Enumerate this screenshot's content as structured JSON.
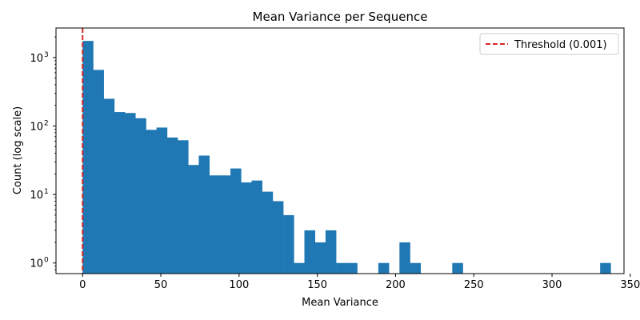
{
  "chart_data": {
    "type": "bar",
    "title": "Mean Variance per Sequence",
    "xlabel": "Mean Variance",
    "ylabel": "Count (log scale)",
    "y_scale": "log",
    "xlim": [
      -17,
      346
    ],
    "ylim": [
      0.7,
      2700
    ],
    "x_ticks": [
      0,
      50,
      100,
      150,
      200,
      250,
      300,
      350
    ],
    "y_ticks": [
      {
        "value": 1,
        "base": "10",
        "exp": "0"
      },
      {
        "value": 10,
        "base": "10",
        "exp": "1"
      },
      {
        "value": 100,
        "base": "10",
        "exp": "2"
      },
      {
        "value": 1000,
        "base": "10",
        "exp": "3"
      }
    ],
    "grid": false,
    "bar_color": "#1f77b4",
    "bin_width": 6.75,
    "bin_start": 0,
    "values": [
      1750,
      660,
      250,
      160,
      155,
      130,
      88,
      95,
      68,
      62,
      27,
      37,
      19,
      19,
      24,
      15,
      16,
      11,
      8,
      5,
      1,
      3,
      2,
      3,
      1,
      1,
      0,
      0,
      1,
      0,
      2,
      1,
      0,
      0,
      0,
      1,
      0,
      0,
      0,
      0,
      0,
      0,
      0,
      0,
      0,
      0,
      0,
      0,
      0,
      1
    ],
    "threshold": {
      "label": "Threshold (0.001)",
      "x": 0.001,
      "color": "#d62728",
      "style": "dashed"
    },
    "legend_position": "top-right"
  }
}
